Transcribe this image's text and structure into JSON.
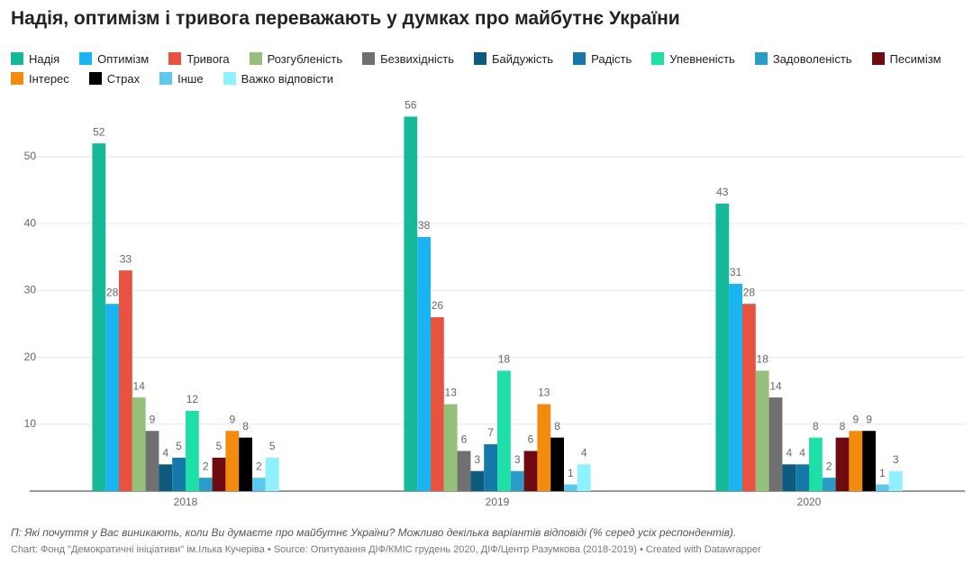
{
  "chart_data": {
    "type": "bar",
    "title": "Надія, оптимізм і тривога переважають у думках про майбутнє України",
    "categories": [
      "2018",
      "2019",
      "2020"
    ],
    "series": [
      {
        "name": "Надія",
        "color": "#15b99a",
        "values": [
          52,
          56,
          43
        ]
      },
      {
        "name": "Оптимізм",
        "color": "#19b4f1",
        "values": [
          28,
          38,
          31
        ]
      },
      {
        "name": "Тривога",
        "color": "#e8533f",
        "values": [
          33,
          26,
          28
        ]
      },
      {
        "name": "Розгубленість",
        "color": "#95c07b",
        "values": [
          14,
          13,
          18
        ]
      },
      {
        "name": "Безвихідність",
        "color": "#707070",
        "values": [
          9,
          6,
          14
        ]
      },
      {
        "name": "Байдужість",
        "color": "#0c5a7e",
        "values": [
          4,
          3,
          4
        ]
      },
      {
        "name": "Радість",
        "color": "#1478a8",
        "values": [
          5,
          7,
          4
        ]
      },
      {
        "name": "Упевненість",
        "color": "#1ee0a7",
        "values": [
          12,
          18,
          8
        ]
      },
      {
        "name": "Задоволеність",
        "color": "#2a9cc8",
        "values": [
          2,
          3,
          2
        ]
      },
      {
        "name": "Песимізм",
        "color": "#6e0a10",
        "values": [
          5,
          6,
          8
        ]
      },
      {
        "name": "Інтерес",
        "color": "#f38b0f",
        "values": [
          9,
          13,
          9
        ]
      },
      {
        "name": "Страх",
        "color": "#000000",
        "values": [
          8,
          8,
          9
        ]
      },
      {
        "name": "Інше",
        "color": "#5cc8ee",
        "values": [
          2,
          1,
          1
        ]
      },
      {
        "name": "Важко відповісти",
        "color": "#8ff1fb",
        "values": [
          5,
          4,
          3
        ]
      }
    ],
    "ylim": [
      0,
      58
    ],
    "yticks": [
      10,
      20,
      30,
      40,
      50
    ],
    "grid": true,
    "note": "П: Які почуття у Вас виникають, коли Ви думаєте про майбутнє України? Можливо декілька варіантів відповіді (% серед усіх респондентів).",
    "source": "Chart: Фонд \"Демократичні ініціативи\" ім.Ілька Кучеріва • Source: Опитування ДІФ/КМІС грудень 2020, ДІФ/Центр Разумкова (2018-2019) • Created with Datawrapper"
  }
}
